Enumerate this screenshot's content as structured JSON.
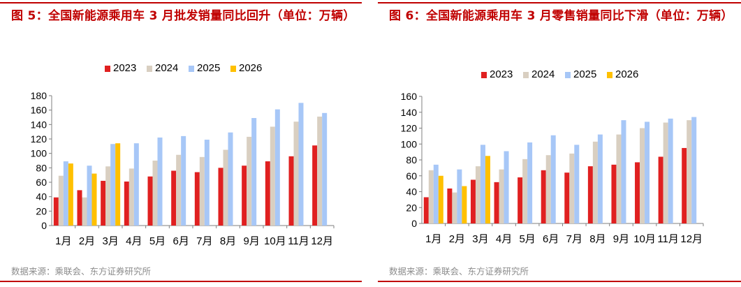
{
  "colors": {
    "accent": "#c00000",
    "series": [
      "#e02020",
      "#d9cfc1",
      "#a7c7f7",
      "#ffc000"
    ],
    "source_text": "#8c8c8c"
  },
  "left": {
    "title": "图 5：全国新能源乘用车 3 月批发销量同比回升（单位：万辆）",
    "source": "数据来源：乘联会、东方证券研究所"
  },
  "right": {
    "title": "图 6：全国新能源乘用车 3 月零售销量同比下滑（单位：万辆）",
    "source": "数据来源：乘联会、东方证券研究所"
  },
  "chart_data": [
    {
      "type": "bar",
      "title": "图 5：全国新能源乘用车 3 月批发销量同比回升（单位：万辆）",
      "categories": [
        "1月",
        "2月",
        "3月",
        "4月",
        "5月",
        "6月",
        "7月",
        "8月",
        "9月",
        "10月",
        "11月",
        "12月"
      ],
      "series": [
        {
          "name": "2023",
          "values": [
            39,
            49,
            62,
            61,
            68,
            76,
            74,
            80,
            83,
            89,
            96,
            111
          ]
        },
        {
          "name": "2024",
          "values": [
            69,
            39,
            82,
            79,
            90,
            98,
            95,
            105,
            123,
            137,
            144,
            151
          ]
        },
        {
          "name": "2025",
          "values": [
            89,
            83,
            113,
            114,
            122,
            124,
            119,
            129,
            149,
            161,
            170,
            156
          ]
        },
        {
          "name": "2026",
          "values": [
            86,
            72,
            114,
            null,
            null,
            null,
            null,
            null,
            null,
            null,
            null,
            null
          ]
        }
      ],
      "ylim": [
        0,
        180
      ],
      "yticks": [
        0,
        20,
        40,
        60,
        80,
        100,
        120,
        140,
        160,
        180
      ],
      "legend": "top",
      "grid": false
    },
    {
      "type": "bar",
      "title": "图 6：全国新能源乘用车 3 月零售销量同比下滑（单位：万辆）",
      "categories": [
        "1月",
        "2月",
        "3月",
        "4月",
        "5月",
        "6月",
        "7月",
        "8月",
        "9月",
        "10月",
        "11月",
        "12月"
      ],
      "series": [
        {
          "name": "2023",
          "values": [
            33,
            44,
            55,
            52,
            58,
            67,
            64,
            72,
            74,
            77,
            84,
            95
          ]
        },
        {
          "name": "2024",
          "values": [
            67,
            39,
            72,
            68,
            81,
            86,
            88,
            103,
            112,
            120,
            127,
            130
          ]
        },
        {
          "name": "2025",
          "values": [
            74,
            68,
            99,
            91,
            102,
            111,
            99,
            112,
            130,
            128,
            132,
            134
          ]
        },
        {
          "name": "2026",
          "values": [
            60,
            47,
            85,
            null,
            null,
            null,
            null,
            null,
            null,
            null,
            null,
            null
          ]
        }
      ],
      "ylim": [
        0,
        160
      ],
      "yticks": [
        0,
        20,
        40,
        60,
        80,
        100,
        120,
        140,
        160
      ],
      "legend": "top",
      "grid": false
    }
  ]
}
